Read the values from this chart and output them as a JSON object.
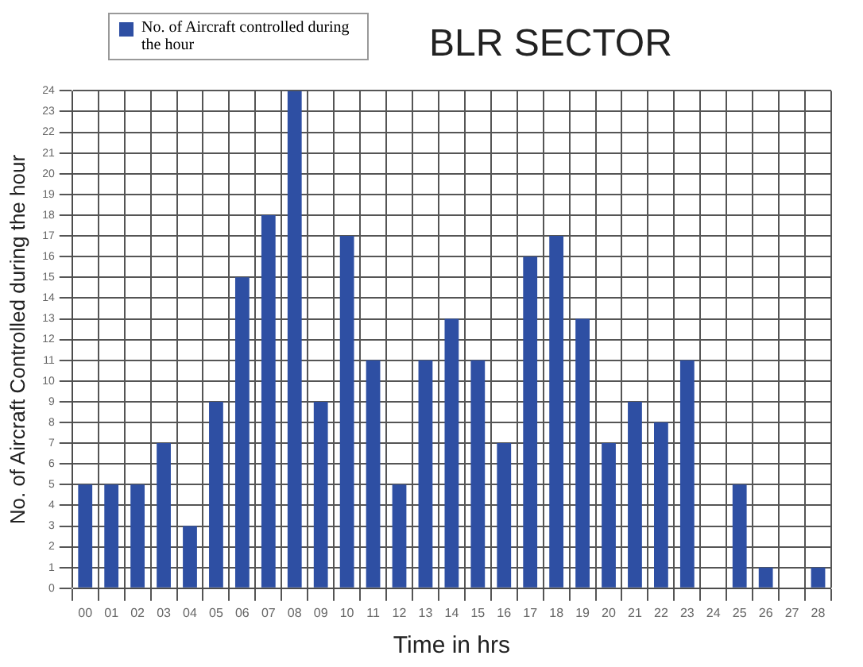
{
  "chart_data": {
    "type": "bar",
    "title": "BLR SECTOR",
    "xlabel": "Time in hrs",
    "ylabel": "No. of Aircraft Controlled during the hour",
    "categories": [
      "00",
      "01",
      "02",
      "03",
      "04",
      "05",
      "06",
      "07",
      "08",
      "09",
      "10",
      "11",
      "12",
      "13",
      "14",
      "15",
      "16",
      "17",
      "18",
      "19",
      "20",
      "21",
      "22",
      "23",
      "24",
      "25",
      "26",
      "27",
      "28"
    ],
    "series": [
      {
        "name": "No. of Aircraft controlled during the hour",
        "color": "#2e4fa3",
        "values": [
          5,
          5,
          5,
          7,
          3,
          9,
          15,
          18,
          24,
          9,
          17,
          11,
          5,
          11,
          13,
          11,
          7,
          16,
          17,
          13,
          7,
          9,
          8,
          11,
          null,
          5,
          1,
          null,
          1
        ]
      }
    ],
    "ylim": [
      0,
      24
    ],
    "yticks": [
      0,
      1,
      2,
      3,
      4,
      5,
      6,
      7,
      8,
      9,
      10,
      11,
      12,
      13,
      14,
      15,
      16,
      17,
      18,
      19,
      20,
      21,
      22,
      23,
      24
    ],
    "grid": true,
    "legend": "top left"
  }
}
